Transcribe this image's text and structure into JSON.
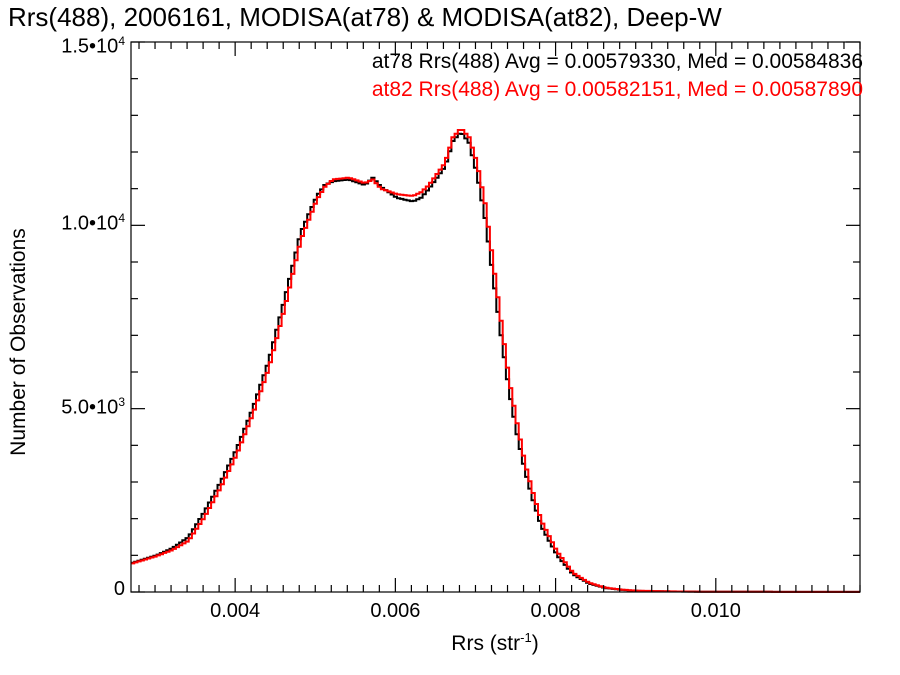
{
  "chart_data": {
    "type": "line",
    "title": "Rrs(488), 2006161, MODISA(at78) & MODISA(at82), Deep-W",
    "xlabel": "Rrs (str",
    "xlabel_sup": "-1",
    "xlabel_close": ")",
    "ylabel": "Number of Observations",
    "xlim": [
      0.0027,
      0.0118
    ],
    "ylim": [
      0,
      15000
    ],
    "xticks": [
      {
        "value": 0.004,
        "label": "0.004"
      },
      {
        "value": 0.006,
        "label": "0.006"
      },
      {
        "value": 0.008,
        "label": "0.008"
      },
      {
        "value": 0.01,
        "label": "0.010"
      }
    ],
    "yticks": [
      {
        "value": 0,
        "mantissa": "0",
        "exp": ""
      },
      {
        "value": 5000,
        "mantissa": "5.0•10",
        "exp": "3"
      },
      {
        "value": 10000,
        "mantissa": "1.0•10",
        "exp": "4"
      },
      {
        "value": 15000,
        "mantissa": "1.5•10",
        "exp": "4"
      }
    ],
    "grid": false,
    "legend_position": "top-right",
    "series": [
      {
        "name": "at78 Rrs(488) Avg = 0.00579330, Med = 0.00584836",
        "color": "#000000",
        "x": [
          0.0027,
          0.003,
          0.0032,
          0.0034,
          0.0036,
          0.0038,
          0.004,
          0.0042,
          0.0044,
          0.0046,
          0.0048,
          0.005,
          0.0051,
          0.0052,
          0.0054,
          0.0056,
          0.0057,
          0.0058,
          0.006,
          0.0062,
          0.0063,
          0.0064,
          0.0066,
          0.0067,
          0.0068,
          0.0069,
          0.007,
          0.0071,
          0.0072,
          0.0073,
          0.0074,
          0.0075,
          0.0076,
          0.0077,
          0.0078,
          0.008,
          0.0082,
          0.0084,
          0.0086,
          0.0088,
          0.009,
          0.0094,
          0.0098,
          0.0104,
          0.011,
          0.0118
        ],
        "y": [
          800,
          1000,
          1200,
          1500,
          2200,
          3000,
          3900,
          5000,
          6300,
          8000,
          9800,
          10800,
          11100,
          11200,
          11250,
          11100,
          11300,
          11050,
          10750,
          10650,
          10750,
          11000,
          11600,
          12300,
          12550,
          12250,
          11400,
          10200,
          8600,
          7000,
          5500,
          4300,
          3300,
          2500,
          1800,
          1000,
          480,
          230,
          110,
          60,
          30,
          15,
          8,
          5,
          3,
          2
        ]
      },
      {
        "name": "at82 Rrs(488) Avg = 0.00582151, Med = 0.00587890",
        "color": "#ff0000",
        "x": [
          0.0027,
          0.003,
          0.0032,
          0.0034,
          0.0036,
          0.0038,
          0.004,
          0.0042,
          0.0044,
          0.0046,
          0.0048,
          0.005,
          0.0051,
          0.0052,
          0.0054,
          0.0056,
          0.0057,
          0.0058,
          0.006,
          0.0062,
          0.0063,
          0.0064,
          0.0066,
          0.0067,
          0.0068,
          0.0069,
          0.007,
          0.0071,
          0.0072,
          0.0073,
          0.0074,
          0.0075,
          0.0076,
          0.0077,
          0.0078,
          0.008,
          0.0082,
          0.0084,
          0.0086,
          0.0088,
          0.009,
          0.0094,
          0.0098,
          0.0104,
          0.011,
          0.0118
        ],
        "y": [
          780,
          980,
          1150,
          1400,
          2050,
          2850,
          3750,
          4850,
          6100,
          7750,
          9600,
          10700,
          11050,
          11250,
          11300,
          11150,
          11250,
          11000,
          10850,
          10800,
          10900,
          11100,
          11700,
          12400,
          12650,
          12400,
          11700,
          10600,
          9000,
          7400,
          5800,
          4600,
          3500,
          2700,
          1950,
          1100,
          520,
          250,
          120,
          65,
          35,
          17,
          9,
          5,
          3,
          2
        ]
      }
    ]
  }
}
